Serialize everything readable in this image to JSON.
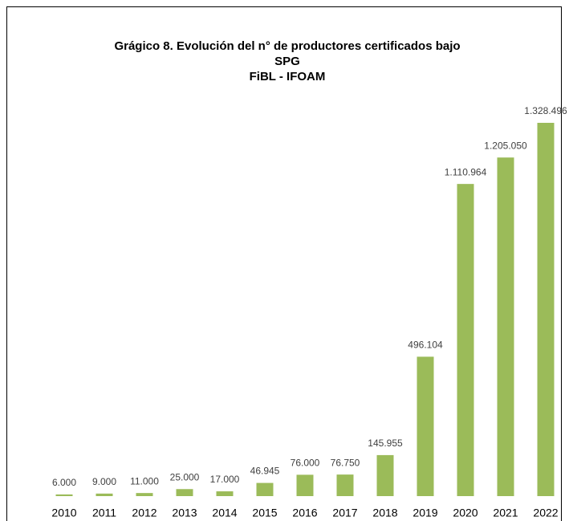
{
  "chart_data": {
    "type": "bar",
    "title": [
      "Grágico 8. Evolución del n° de productores certificados bajo",
      "SPG"
    ],
    "subtitle": "FiBL - IFOAM",
    "categories": [
      "2010",
      "2011",
      "2012",
      "2013",
      "2014",
      "2015",
      "2016",
      "2017",
      "2018",
      "2019",
      "2020",
      "2021",
      "2022"
    ],
    "values": [
      6000,
      9000,
      11000,
      25000,
      17000,
      46945,
      76000,
      76750,
      145955,
      496104,
      1110964,
      1205050,
      1328496
    ],
    "value_labels": [
      "6.000",
      "9.000",
      "11.000",
      "25.000",
      "17.000",
      "46.945",
      "76.000",
      "76.750",
      "145.955",
      "496.104",
      "1.110.964",
      "1.205.050",
      "1.328.496"
    ],
    "color": "#9bbb59"
  }
}
